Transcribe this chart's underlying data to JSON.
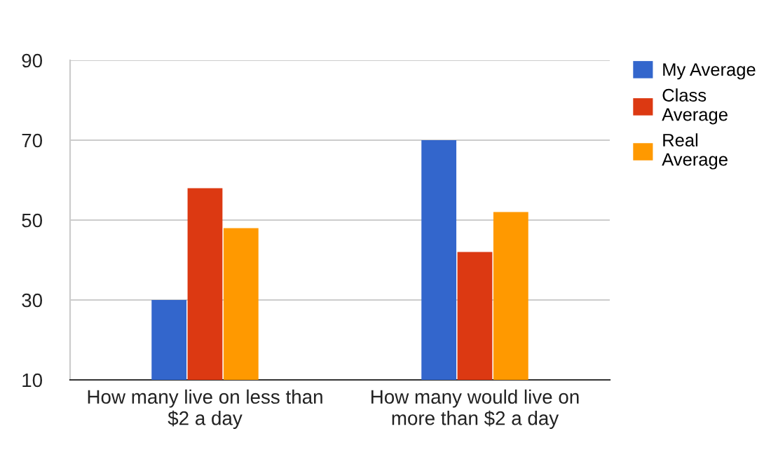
{
  "chart_data": {
    "type": "bar",
    "categories": [
      "How many live on less than $2 a day",
      "How many would live on more than $2 a day"
    ],
    "series": [
      {
        "name": "My Average",
        "color": "#3366cc",
        "values": [
          30,
          70
        ]
      },
      {
        "name": "Class Average",
        "color": "#dc3912",
        "values": [
          58,
          42
        ]
      },
      {
        "name": "Real Average",
        "color": "#ff9900",
        "values": [
          48,
          52
        ]
      }
    ],
    "ylim": [
      10,
      90
    ],
    "yticks": [
      10,
      30,
      50,
      70,
      90
    ],
    "grid": "y",
    "legend": "top right"
  }
}
